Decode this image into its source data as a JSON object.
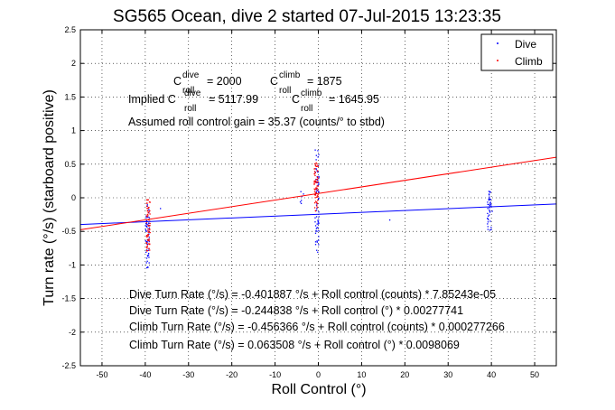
{
  "chart_data": {
    "type": "scatter",
    "title": "SG565 Ocean, dive 2 started 07-Jul-2015 13:23:35",
    "xlabel": "Roll Control (°)",
    "ylabel": "Turn rate (°/s) (starboard positive)",
    "xlim": [
      -55,
      55
    ],
    "ylim": [
      -2.5,
      2.5
    ],
    "xticks": [
      "-50",
      "-40",
      "-30",
      "-20",
      "-10",
      "0",
      "10",
      "20",
      "30",
      "40",
      "50"
    ],
    "xtick_values": [
      -50,
      -40,
      -30,
      -20,
      -10,
      0,
      10,
      20,
      30,
      40,
      50
    ],
    "yticks": [
      "-2.5",
      "-2",
      "-1.5",
      "-1",
      "-0.5",
      "0",
      "0.5",
      "1",
      "1.5",
      "2",
      "2.5"
    ],
    "ytick_values": [
      -2.5,
      -2,
      -1.5,
      -1,
      -0.5,
      0,
      0.5,
      1,
      1.5,
      2,
      2.5
    ],
    "grid": true,
    "legend_position": "top-right",
    "series": [
      {
        "name": "Dive",
        "color": "#0000ff",
        "marker": "dot",
        "clusters": [
          {
            "x": -39.5,
            "y_min": -1.05,
            "y_max": -0.1,
            "count": 60
          },
          {
            "x": -0.3,
            "y_min": -0.85,
            "y_max": 0.75,
            "count": 70
          },
          {
            "x": -3.8,
            "y_min": -0.1,
            "y_max": 0.15,
            "count": 6
          },
          {
            "x": 39.5,
            "y_min": -0.5,
            "y_max": 0.1,
            "count": 40
          }
        ],
        "points": [
          [
            -36.5,
            -0.16
          ],
          [
            16.5,
            -0.33
          ],
          [
            -39.9,
            -0.47
          ],
          [
            40.2,
            -0.2
          ]
        ],
        "fit": {
          "intercept": -0.244838,
          "slope": 0.00277741
        }
      },
      {
        "name": "Climb",
        "color": "#ff0000",
        "marker": "dot",
        "clusters": [
          {
            "x": -39.3,
            "y_min": -0.8,
            "y_max": 0.0,
            "count": 60
          },
          {
            "x": -0.5,
            "y_min": -0.2,
            "y_max": 0.55,
            "count": 60
          }
        ],
        "points": [
          [
            -0.8,
            0.12
          ],
          [
            -39.5,
            -0.25
          ]
        ],
        "fit": {
          "intercept": 0.063508,
          "slope": 0.0098069
        }
      }
    ],
    "annotations": {
      "c_dive_prefix": "C",
      "c_dive_sup": "dive",
      "c_dive_sub": "roll",
      "c_dive_val": "= 2000",
      "c_climb_prefix": "C",
      "c_climb_sup": "climb",
      "c_climb_sub": "roll",
      "c_climb_val": "= 1875",
      "implied_label": "Implied C",
      "implied_dive_sup": "dive",
      "implied_dive_sub": "roll",
      "implied_dive_val": "= 5117.99",
      "implied_climb_prefix": "C",
      "implied_climb_sup": "climb",
      "implied_climb_sub": "roll",
      "implied_climb_val": "= 1645.95",
      "gain": "Assumed roll control gain = 35.37 (counts/° to stbd)",
      "fit_lines": [
        "Dive Turn Rate (°/s) = -0.401887 °/s + Roll control (counts) * 7.85243e-05",
        "Dive Turn Rate (°/s) = -0.244838 °/s + Roll control (°) * 0.00277741",
        "Climb Turn Rate (°/s) = -0.456366 °/s + Roll control (counts) * 0.000277266",
        "Climb Turn Rate (°/s) = 0.063508 °/s + Roll control (°) * 0.0098069"
      ]
    }
  }
}
